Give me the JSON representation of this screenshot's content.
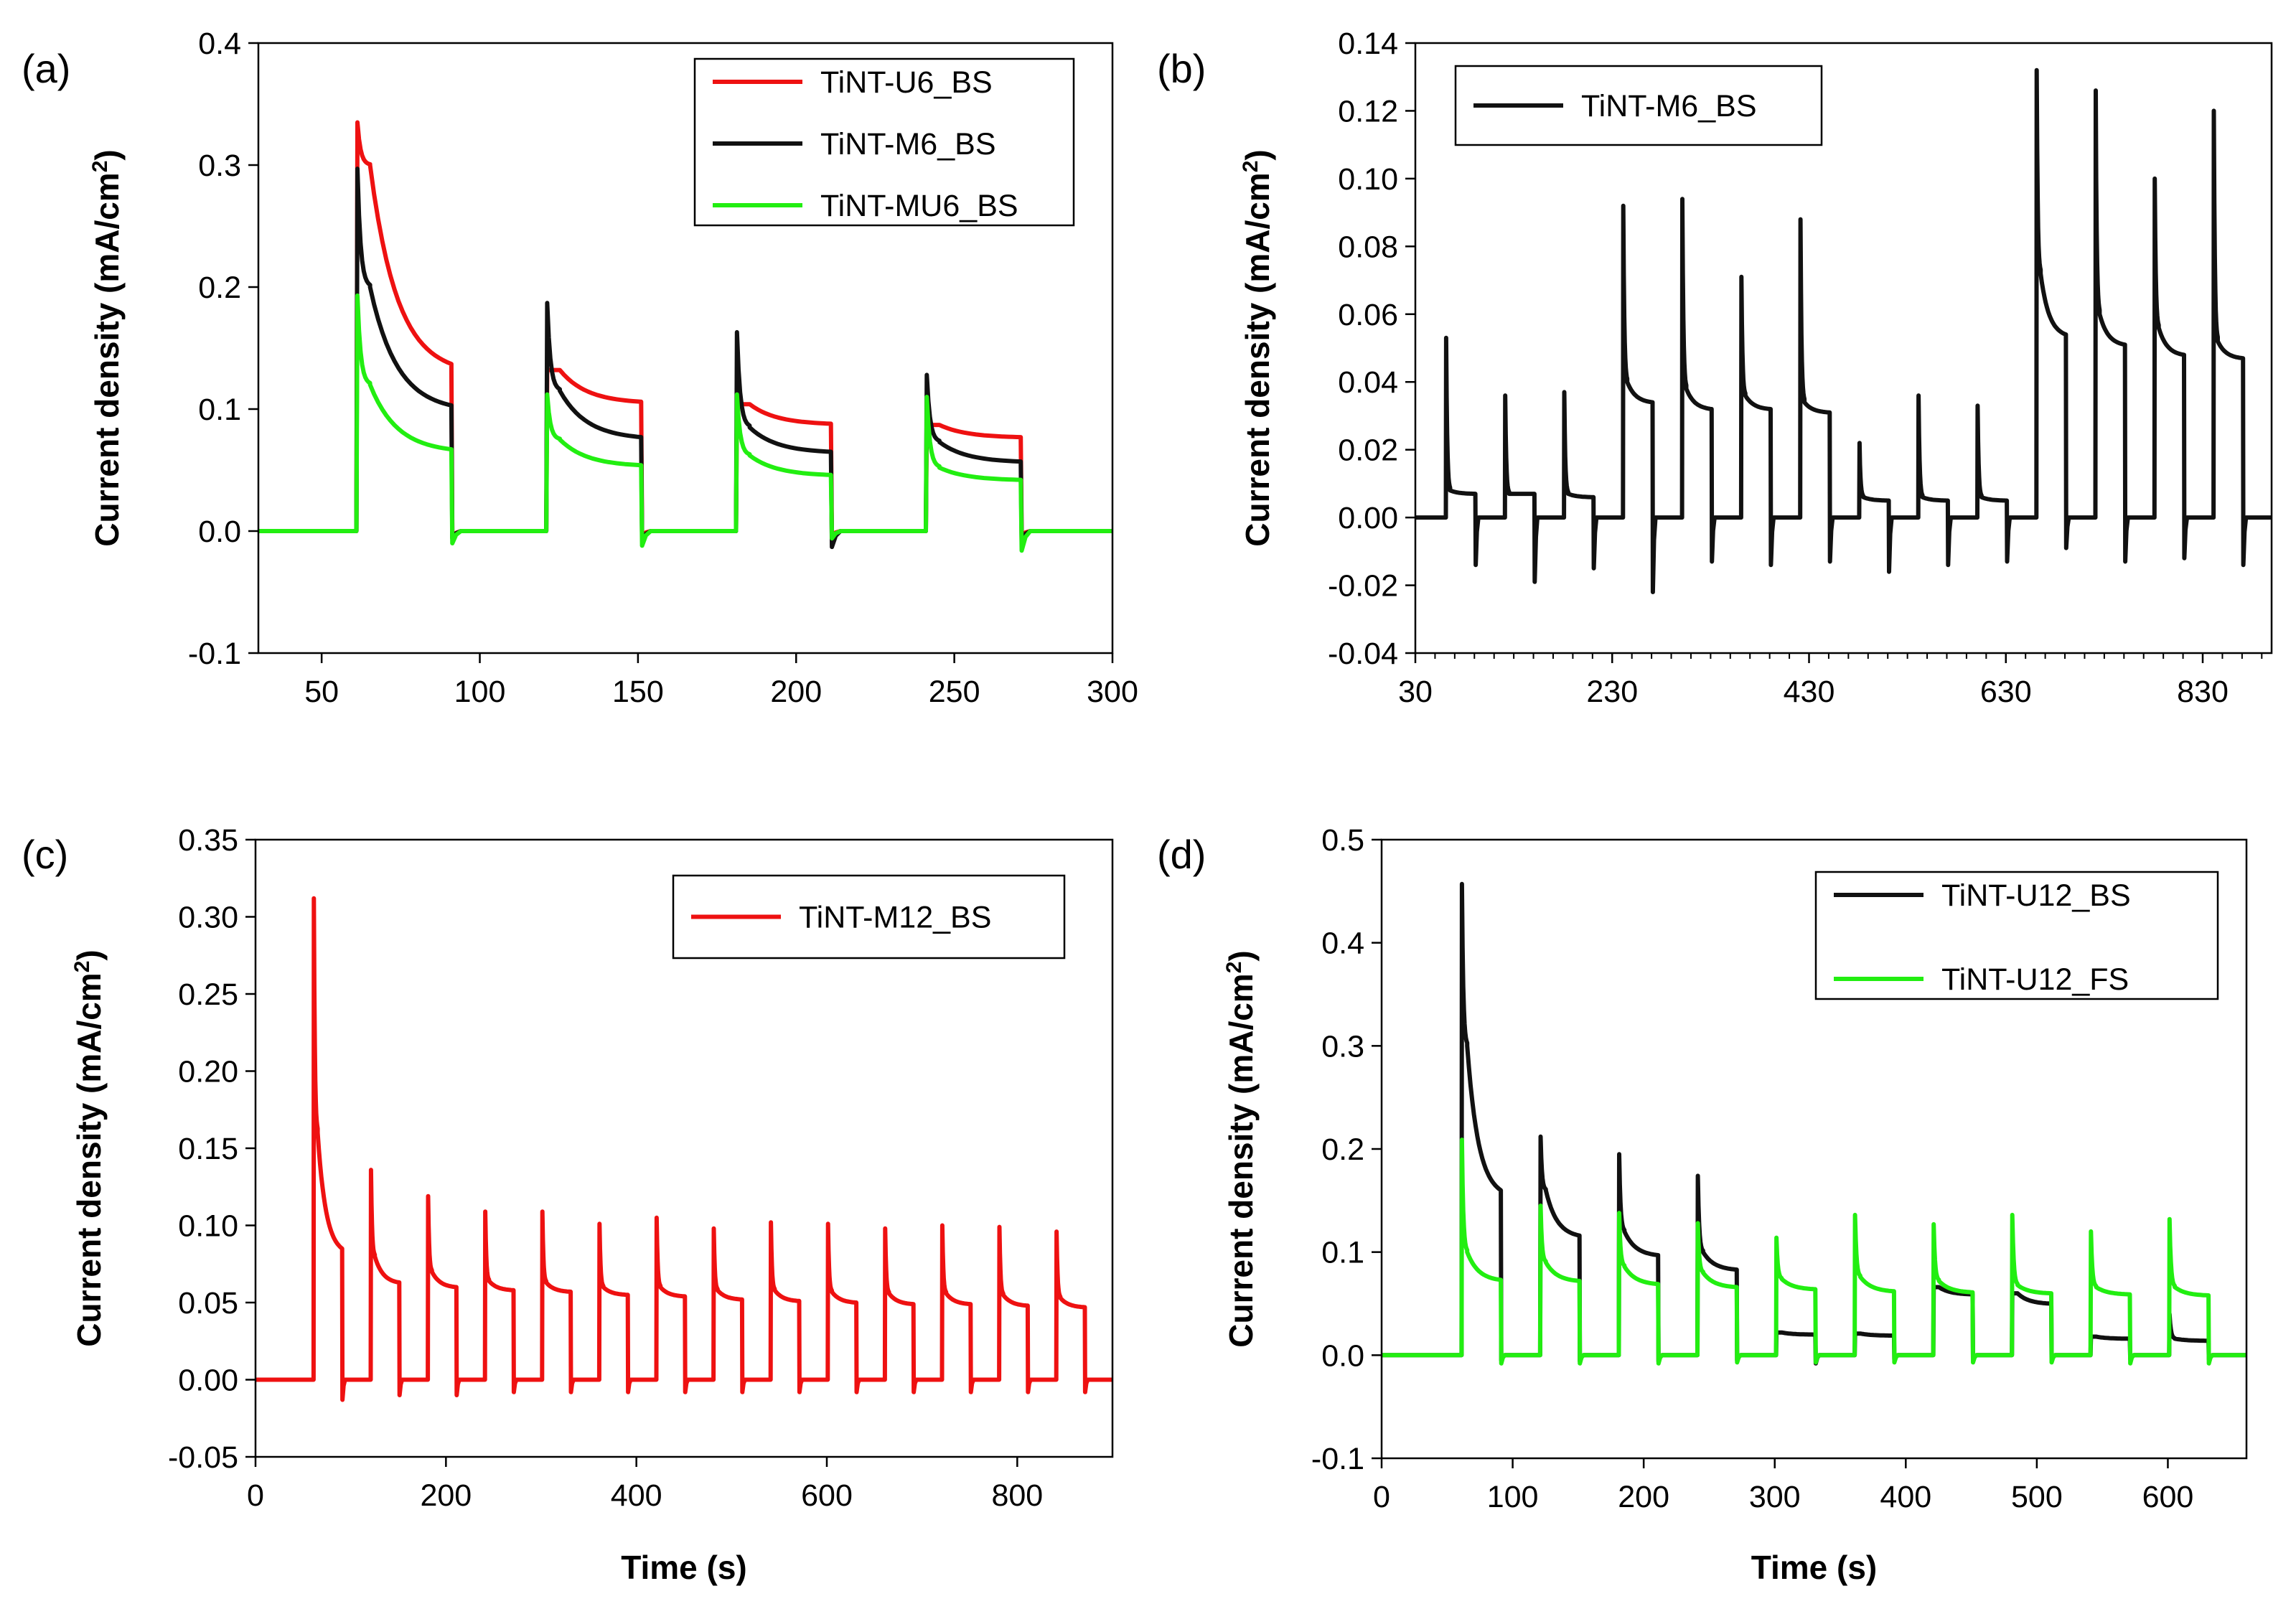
{
  "figure": {
    "description_labels": [
      "(a)",
      "(b)",
      "(c)",
      "(d)"
    ]
  },
  "chart_data": [
    {
      "panel_label": "(a)",
      "type": "line",
      "ylabel_main": "Current density (mA/cm",
      "ylabel_sup": "2",
      "ylabel_tail": ")",
      "xlabel": "",
      "xlim": [
        30,
        300
      ],
      "ylim": [
        -0.1,
        0.4
      ],
      "xticks": [
        50,
        100,
        150,
        200,
        250,
        300
      ],
      "xtick_labels": [
        "50",
        "100",
        "150",
        "200",
        "250",
        "300"
      ],
      "yticks": [
        -0.1,
        0.0,
        0.1,
        0.2,
        0.3,
        0.4
      ],
      "ytick_labels": [
        "-0.1",
        "0.0",
        "0.1",
        "0.2",
        "0.3",
        "0.4"
      ],
      "legend_position": "top-right",
      "series": [
        {
          "name": "TiNT-U6_BS",
          "color": "#ee1111",
          "pulses": [
            {
              "on": 61,
              "off": 91,
              "peak": 0.335,
              "start": 0.3,
              "end": 0.137,
              "dip": -0.005
            },
            {
              "on": 121,
              "off": 151,
              "peak": 0.132,
              "start": 0.132,
              "end": 0.106,
              "dip": -0.004
            },
            {
              "on": 181,
              "off": 211,
              "peak": 0.104,
              "start": 0.104,
              "end": 0.088,
              "dip": -0.004
            },
            {
              "on": 241,
              "off": 271,
              "peak": 0.087,
              "start": 0.087,
              "end": 0.077,
              "dip": -0.004
            }
          ],
          "tail_end": 300
        },
        {
          "name": "TiNT-M6_BS",
          "color": "#111111",
          "pulses": [
            {
              "on": 61,
              "off": 91,
              "peak": 0.297,
              "start": 0.2,
              "end": 0.103,
              "dip": -0.006
            },
            {
              "on": 121,
              "off": 151,
              "peak": 0.187,
              "start": 0.115,
              "end": 0.077,
              "dip": -0.008
            },
            {
              "on": 181,
              "off": 211,
              "peak": 0.163,
              "start": 0.085,
              "end": 0.065,
              "dip": -0.013
            },
            {
              "on": 241,
              "off": 271,
              "peak": 0.128,
              "start": 0.073,
              "end": 0.057,
              "dip": -0.008
            }
          ],
          "tail_end": 300
        },
        {
          "name": "TiNT-MU6_BS",
          "color": "#22ee11",
          "pulses": [
            {
              "on": 61,
              "off": 91,
              "peak": 0.193,
              "start": 0.12,
              "end": 0.067,
              "dip": -0.01
            },
            {
              "on": 121,
              "off": 151,
              "peak": 0.112,
              "start": 0.075,
              "end": 0.054,
              "dip": -0.012
            },
            {
              "on": 181,
              "off": 211,
              "peak": 0.112,
              "start": 0.062,
              "end": 0.046,
              "dip": -0.006
            },
            {
              "on": 241,
              "off": 271,
              "peak": 0.11,
              "start": 0.052,
              "end": 0.042,
              "dip": -0.016
            }
          ],
          "tail_end": 300
        }
      ]
    },
    {
      "panel_label": "(b)",
      "type": "line",
      "ylabel_main": "Current density (mA/cm",
      "ylabel_sup": "2",
      "ylabel_tail": ")",
      "xlabel": "",
      "xlim": [
        30,
        900
      ],
      "ylim": [
        -0.04,
        0.14
      ],
      "xticks": [
        30,
        230,
        430,
        630,
        830
      ],
      "xtick_labels": [
        "30",
        "230",
        "430",
        "630",
        "830"
      ],
      "yticks": [
        -0.04,
        -0.02,
        0.0,
        0.02,
        0.04,
        0.06,
        0.08,
        0.1,
        0.12,
        0.14
      ],
      "ytick_labels": [
        "-0.04",
        "-0.02",
        "0.00",
        "0.02",
        "0.04",
        "0.06",
        "0.08",
        "0.10",
        "0.12",
        "0.14"
      ],
      "legend_position": "top-left",
      "series": [
        {
          "name": "TiNT-M6_BS",
          "color": "#111111",
          "pulses": [
            {
              "on": 61,
              "off": 91,
              "peak": 0.053,
              "start": 0.008,
              "end": 0.007,
              "dip": -0.014
            },
            {
              "on": 121,
              "off": 151,
              "peak": 0.036,
              "start": 0.007,
              "end": 0.007,
              "dip": -0.019
            },
            {
              "on": 181,
              "off": 211,
              "peak": 0.037,
              "start": 0.007,
              "end": 0.006,
              "dip": -0.015
            },
            {
              "on": 241,
              "off": 271,
              "peak": 0.092,
              "start": 0.04,
              "end": 0.034,
              "dip": -0.022
            },
            {
              "on": 301,
              "off": 331,
              "peak": 0.094,
              "start": 0.038,
              "end": 0.032,
              "dip": -0.013
            },
            {
              "on": 361,
              "off": 391,
              "peak": 0.071,
              "start": 0.036,
              "end": 0.032,
              "dip": -0.014
            },
            {
              "on": 421,
              "off": 451,
              "peak": 0.088,
              "start": 0.034,
              "end": 0.031,
              "dip": -0.013
            },
            {
              "on": 481,
              "off": 511,
              "peak": 0.022,
              "start": 0.006,
              "end": 0.005,
              "dip": -0.016
            },
            {
              "on": 541,
              "off": 571,
              "peak": 0.036,
              "start": 0.006,
              "end": 0.005,
              "dip": -0.014
            },
            {
              "on": 601,
              "off": 631,
              "peak": 0.033,
              "start": 0.006,
              "end": 0.005,
              "dip": -0.013
            },
            {
              "on": 661,
              "off": 691,
              "peak": 0.132,
              "start": 0.072,
              "end": 0.054,
              "dip": -0.009
            },
            {
              "on": 721,
              "off": 751,
              "peak": 0.126,
              "start": 0.06,
              "end": 0.051,
              "dip": -0.013
            },
            {
              "on": 781,
              "off": 811,
              "peak": 0.1,
              "start": 0.056,
              "end": 0.048,
              "dip": -0.012
            },
            {
              "on": 841,
              "off": 871,
              "peak": 0.12,
              "start": 0.052,
              "end": 0.047,
              "dip": -0.014
            }
          ],
          "tail_end": 900
        }
      ]
    },
    {
      "panel_label": "(c)",
      "type": "line",
      "ylabel_main": "Current density (mA/cm",
      "ylabel_sup": "2",
      "ylabel_tail": ")",
      "xlabel": "Time (s)",
      "xlim": [
        0,
        900
      ],
      "ylim": [
        -0.05,
        0.35
      ],
      "xticks": [
        0,
        200,
        400,
        600,
        800
      ],
      "xtick_labels": [
        "0",
        "200",
        "400",
        "600",
        "800"
      ],
      "yticks": [
        -0.05,
        0.0,
        0.05,
        0.1,
        0.15,
        0.2,
        0.25,
        0.3,
        0.35
      ],
      "ytick_labels": [
        "-0.05",
        "0.00",
        "0.05",
        "0.10",
        "0.15",
        "0.20",
        "0.25",
        "0.30",
        "0.35"
      ],
      "legend_position": "top-right",
      "series": [
        {
          "name": "TiNT-M12_BS",
          "color": "#ee1111",
          "pulses": [
            {
              "on": 61,
              "off": 91,
              "peak": 0.312,
              "start": 0.16,
              "end": 0.085,
              "dip": -0.013
            },
            {
              "on": 121,
              "off": 151,
              "peak": 0.136,
              "start": 0.08,
              "end": 0.063,
              "dip": -0.01
            },
            {
              "on": 181,
              "off": 211,
              "peak": 0.119,
              "start": 0.07,
              "end": 0.06,
              "dip": -0.01
            },
            {
              "on": 241,
              "off": 271,
              "peak": 0.109,
              "start": 0.064,
              "end": 0.058,
              "dip": -0.008
            },
            {
              "on": 301,
              "off": 331,
              "peak": 0.109,
              "start": 0.063,
              "end": 0.057,
              "dip": -0.008
            },
            {
              "on": 361,
              "off": 391,
              "peak": 0.101,
              "start": 0.06,
              "end": 0.055,
              "dip": -0.008
            },
            {
              "on": 421,
              "off": 451,
              "peak": 0.105,
              "start": 0.06,
              "end": 0.054,
              "dip": -0.008
            },
            {
              "on": 481,
              "off": 511,
              "peak": 0.098,
              "start": 0.058,
              "end": 0.052,
              "dip": -0.008
            },
            {
              "on": 541,
              "off": 571,
              "peak": 0.102,
              "start": 0.058,
              "end": 0.051,
              "dip": -0.008
            },
            {
              "on": 601,
              "off": 631,
              "peak": 0.101,
              "start": 0.057,
              "end": 0.05,
              "dip": -0.008
            },
            {
              "on": 661,
              "off": 691,
              "peak": 0.098,
              "start": 0.056,
              "end": 0.049,
              "dip": -0.008
            },
            {
              "on": 721,
              "off": 751,
              "peak": 0.1,
              "start": 0.056,
              "end": 0.049,
              "dip": -0.008
            },
            {
              "on": 781,
              "off": 811,
              "peak": 0.099,
              "start": 0.055,
              "end": 0.048,
              "dip": -0.008
            },
            {
              "on": 841,
              "off": 871,
              "peak": 0.096,
              "start": 0.053,
              "end": 0.047,
              "dip": -0.008
            }
          ],
          "tail_end": 900
        }
      ]
    },
    {
      "panel_label": "(d)",
      "type": "line",
      "ylabel_main": "Current density (mA/cm",
      "ylabel_sup": "2",
      "ylabel_tail": ")",
      "xlabel": "Time (s)",
      "xlim": [
        0,
        660
      ],
      "ylim": [
        -0.1,
        0.5
      ],
      "xticks": [
        0,
        100,
        200,
        300,
        400,
        500,
        600
      ],
      "xtick_labels": [
        "0",
        "100",
        "200",
        "300",
        "400",
        "500",
        "600"
      ],
      "yticks": [
        -0.1,
        0.0,
        0.1,
        0.2,
        0.3,
        0.4,
        0.5
      ],
      "ytick_labels": [
        "-0.1",
        "0.0",
        "0.1",
        "0.2",
        "0.3",
        "0.4",
        "0.5"
      ],
      "legend_position": "top-right",
      "series": [
        {
          "name": "TiNT-U12_BS",
          "color": "#111111",
          "pulses": [
            {
              "on": 61,
              "off": 91,
              "peak": 0.457,
              "start": 0.3,
              "end": 0.16,
              "dip": -0.005
            },
            {
              "on": 121,
              "off": 151,
              "peak": 0.212,
              "start": 0.16,
              "end": 0.116,
              "dip": -0.006
            },
            {
              "on": 181,
              "off": 211,
              "peak": 0.195,
              "start": 0.12,
              "end": 0.097,
              "dip": -0.006
            },
            {
              "on": 241,
              "off": 271,
              "peak": 0.174,
              "start": 0.1,
              "end": 0.083,
              "dip": -0.005
            },
            {
              "on": 301,
              "off": 331,
              "peak": 0.022,
              "start": 0.022,
              "end": 0.02,
              "dip": -0.008
            },
            {
              "on": 361,
              "off": 391,
              "peak": 0.021,
              "start": 0.021,
              "end": 0.019,
              "dip": -0.004
            },
            {
              "on": 421,
              "off": 451,
              "peak": 0.066,
              "start": 0.066,
              "end": 0.059,
              "dip": -0.004
            },
            {
              "on": 481,
              "off": 511,
              "peak": 0.06,
              "start": 0.06,
              "end": 0.05,
              "dip": -0.004
            },
            {
              "on": 541,
              "off": 571,
              "peak": 0.018,
              "start": 0.018,
              "end": 0.016,
              "dip": -0.004
            },
            {
              "on": 601,
              "off": 631,
              "peak": 0.04,
              "start": 0.016,
              "end": 0.014,
              "dip": -0.004
            }
          ],
          "tail_end": 660
        },
        {
          "name": "TiNT-U12_FS",
          "color": "#22ee11",
          "pulses": [
            {
              "on": 61,
              "off": 91,
              "peak": 0.209,
              "start": 0.1,
              "end": 0.073,
              "dip": -0.008
            },
            {
              "on": 121,
              "off": 151,
              "peak": 0.145,
              "start": 0.09,
              "end": 0.072,
              "dip": -0.008
            },
            {
              "on": 181,
              "off": 211,
              "peak": 0.138,
              "start": 0.086,
              "end": 0.069,
              "dip": -0.008
            },
            {
              "on": 241,
              "off": 271,
              "peak": 0.128,
              "start": 0.08,
              "end": 0.066,
              "dip": -0.007
            },
            {
              "on": 301,
              "off": 331,
              "peak": 0.114,
              "start": 0.074,
              "end": 0.064,
              "dip": -0.007
            },
            {
              "on": 361,
              "off": 391,
              "peak": 0.136,
              "start": 0.076,
              "end": 0.062,
              "dip": -0.007
            },
            {
              "on": 421,
              "off": 451,
              "peak": 0.127,
              "start": 0.072,
              "end": 0.061,
              "dip": -0.007
            },
            {
              "on": 481,
              "off": 511,
              "peak": 0.136,
              "start": 0.068,
              "end": 0.06,
              "dip": -0.007
            },
            {
              "on": 541,
              "off": 571,
              "peak": 0.12,
              "start": 0.066,
              "end": 0.059,
              "dip": -0.008
            },
            {
              "on": 601,
              "off": 631,
              "peak": 0.132,
              "start": 0.066,
              "end": 0.058,
              "dip": -0.008
            }
          ],
          "tail_end": 660
        }
      ]
    }
  ]
}
